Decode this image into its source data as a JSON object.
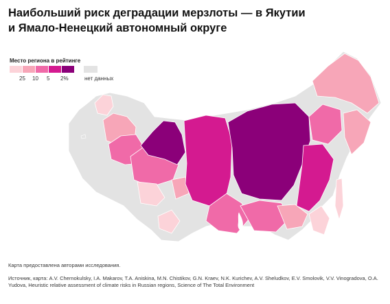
{
  "title": {
    "line1": "Наибольший риск деградации мерзлоты — в Якутии",
    "line2": "и Ямало-Ненецкий автономный округе"
  },
  "legend": {
    "title": "Место региона в рейтинге",
    "labels": [
      "25",
      "10",
      "5",
      "2%"
    ],
    "nodata_label": "нет данных",
    "colors": [
      "#fcd3d9",
      "#f7a6b8",
      "#f06aa8",
      "#d41a90",
      "#8b0079"
    ],
    "nodata_color": "#e3e3e3"
  },
  "map": {
    "regions": [
      {
        "name": "Yakutia",
        "class": 5,
        "color": "#8b0079"
      },
      {
        "name": "Yamalo-Nenets",
        "class": 5,
        "color": "#8b0079"
      },
      {
        "name": "Krasnoyarsk",
        "class": 4,
        "color": "#d41a90"
      },
      {
        "name": "Khabarovsk",
        "class": 4,
        "color": "#d41a90"
      },
      {
        "name": "Khanty-Mansi",
        "class": 3,
        "color": "#f06aa8"
      },
      {
        "name": "Irkutsk",
        "class": 3,
        "color": "#f06aa8"
      },
      {
        "name": "Komi",
        "class": 3,
        "color": "#f06aa8"
      },
      {
        "name": "Magadan",
        "class": 3,
        "color": "#f06aa8"
      },
      {
        "name": "Zabaykalsky",
        "class": 3,
        "color": "#f06aa8"
      },
      {
        "name": "Chukotka",
        "class": 2,
        "color": "#f7a6b8"
      },
      {
        "name": "Kamchatka",
        "class": 2,
        "color": "#f7a6b8"
      },
      {
        "name": "Amur",
        "class": 2,
        "color": "#f7a6b8"
      },
      {
        "name": "Tomsk",
        "class": 2,
        "color": "#f7a6b8"
      },
      {
        "name": "Arkhangelsk",
        "class": 2,
        "color": "#f7a6b8"
      },
      {
        "name": "Tyumen",
        "class": 1,
        "color": "#fcd3d9"
      },
      {
        "name": "Primorsky",
        "class": 1,
        "color": "#fcd3d9"
      },
      {
        "name": "Sakhalin",
        "class": 1,
        "color": "#fcd3d9"
      },
      {
        "name": "Altai",
        "class": 1,
        "color": "#fcd3d9"
      },
      {
        "name": "Murmansk",
        "class": 1,
        "color": "#fcd3d9"
      },
      {
        "name": "Other regions",
        "class": 0,
        "color": "#e3e3e3"
      }
    ]
  },
  "note": "Карта предоставлена авторами исследования.",
  "source": "Источник, карта: A.V. Chernokulsky, I.A. Makarov, T.A. Aniskina, M.N. Chistikov, G.N. Kraev, N.K. Kurichev, A.V. Sheludkov, E.V. Smolovik, V.V. Vinogradova, O.A. Yudova, Heuristic relative assessment of climate risks in Russian regions, Science of The Total Environment"
}
